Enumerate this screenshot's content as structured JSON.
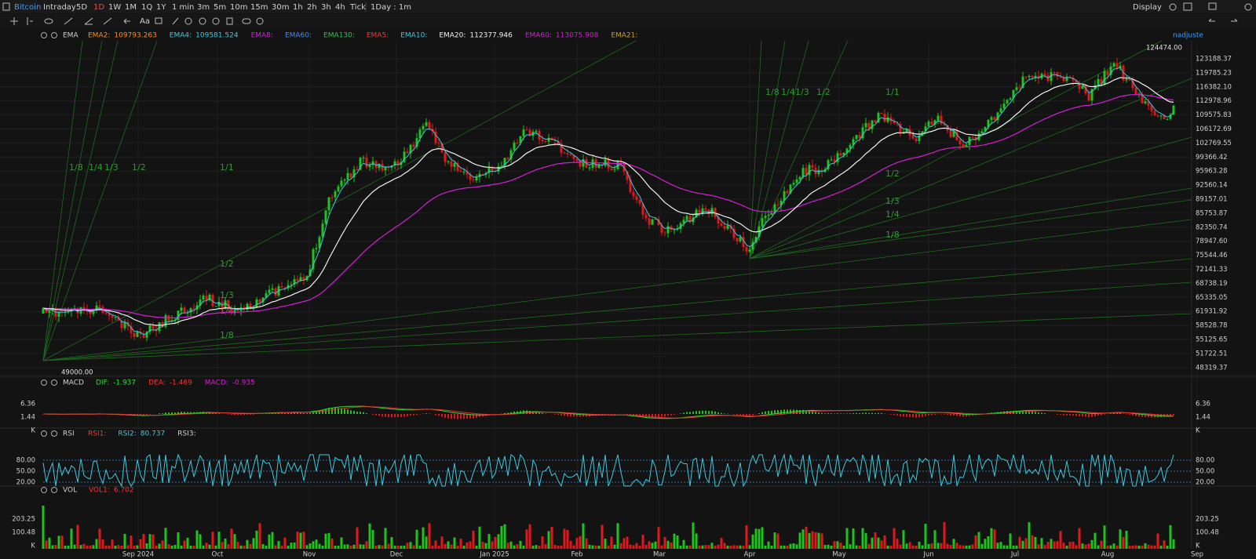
{
  "toolbar": {
    "symbol": "Bitcoin",
    "ranges": [
      "Intraday",
      "5D",
      "1D",
      "1W",
      "1M",
      "1Q",
      "1Y"
    ],
    "intervals": [
      "1 min",
      "3m",
      "5m",
      "10m",
      "15m",
      "30m",
      "1h",
      "2h",
      "3h",
      "4h",
      "Tick"
    ],
    "period": "1Day : 1m",
    "display": "Display"
  },
  "drawing_tools": {
    "text_tool": "Aa"
  },
  "main_legend": {
    "study": "EMA",
    "items": [
      {
        "label": "EMA2:",
        "value": "109793.263"
      },
      {
        "label": "EMA4:",
        "value": "109581.524"
      },
      {
        "label": "EMA8:"
      },
      {
        "label": "EMA60:"
      },
      {
        "label": "EMA130:"
      },
      {
        "label": "EMA5:"
      },
      {
        "label": "EMA10:"
      },
      {
        "label": "EMA20:",
        "value": "112377.946"
      },
      {
        "label": "EMA60:",
        "value": "113075.908"
      },
      {
        "label": "EMA21:"
      }
    ],
    "adjust": "nadjuste"
  },
  "price_axis": [
    "123188.37",
    "119785.23",
    "116382.10",
    "112978.96",
    "109575.83",
    "106172.69",
    "102769.55",
    "99366.42",
    "95963.28",
    "92560.14",
    "89157.01",
    "85753.87",
    "82350.74",
    "78947.60",
    "75544.46",
    "72141.33",
    "68738.19",
    "65335.05",
    "61931.92",
    "58528.78",
    "55125.65",
    "51722.51",
    "48319.37"
  ],
  "annotations": {
    "high": "124474.00",
    "low": "49000.00"
  },
  "fan_labels": [
    "1/8",
    "1/4",
    "1/3",
    "1/2",
    "1/1",
    "1/2",
    "1/3",
    "1/4",
    "1/8",
    "1/8",
    "1/4",
    "1/3",
    "1/2",
    "1/1",
    "1/2",
    "1/3",
    "1/4",
    "1/8"
  ],
  "time_axis": [
    "Sep 2024",
    "Oct",
    "Nov",
    "Dec",
    "Jan 2025",
    "Feb",
    "Mar",
    "Apr",
    "May",
    "Jun",
    "Jul",
    "Aug",
    "Sep"
  ],
  "macd": {
    "study": "MACD",
    "items": [
      {
        "label": "DIF:",
        "value": "-1.937"
      },
      {
        "label": "DEA:",
        "value": "-1.469"
      },
      {
        "label": "MACD:",
        "value": "-0.935"
      }
    ],
    "axis": [
      "6.36",
      "1.44",
      "K"
    ]
  },
  "rsi": {
    "study": "RSI",
    "items": [
      {
        "label": "RSI1:"
      },
      {
        "label": "RSI2:",
        "value": "80.737"
      },
      {
        "label": "RSI3:"
      }
    ],
    "axis": [
      "80.00",
      "50.00",
      "20.00"
    ]
  },
  "vol": {
    "study": "VOL",
    "items": [
      {
        "label": "VOL1:",
        "value": "6.702"
      }
    ],
    "axis": [
      "203.25",
      "100.48",
      "K"
    ]
  }
}
